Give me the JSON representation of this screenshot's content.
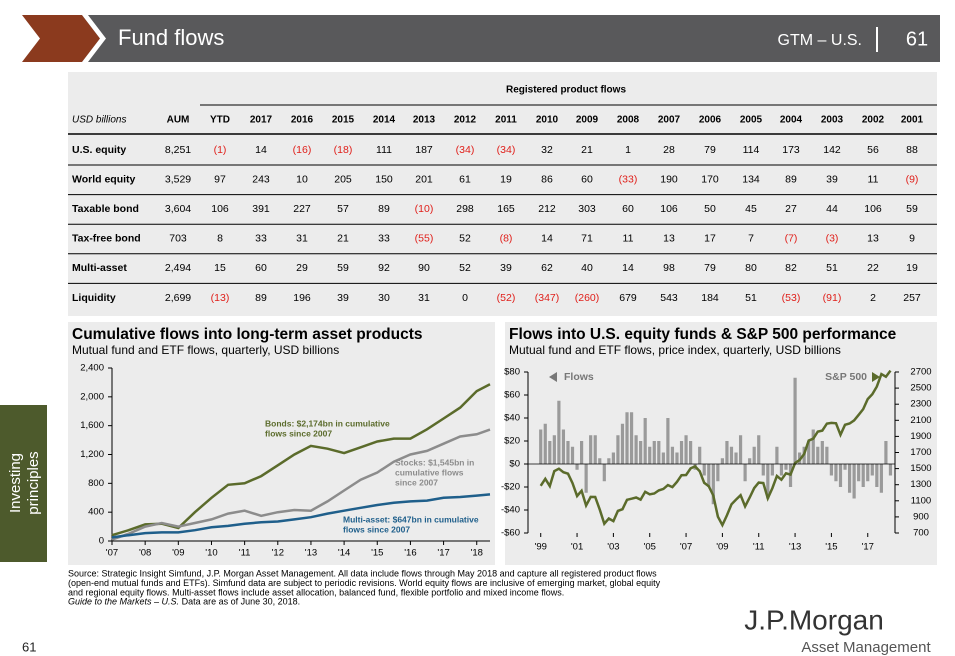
{
  "header": {
    "title": "Fund flows",
    "section": "GTM – U.S.",
    "page": "61"
  },
  "side_tab": [
    "Investing",
    "principles"
  ],
  "table": {
    "group_header": "Registered product flows",
    "columns": [
      "USD billions",
      "AUM",
      "YTD",
      "2017",
      "2016",
      "2015",
      "2014",
      "2013",
      "2012",
      "2011",
      "2010",
      "2009",
      "2008",
      "2007",
      "2006",
      "2005",
      "2004",
      "2003",
      "2002",
      "2001"
    ],
    "rows": [
      [
        "U.S. equity",
        "8,251",
        "(1)",
        "14",
        "(16)",
        "(18)",
        "111",
        "187",
        "(34)",
        "(34)",
        "32",
        "21",
        "1",
        "28",
        "79",
        "114",
        "173",
        "142",
        "56",
        "88"
      ],
      [
        "World equity",
        "3,529",
        "97",
        "243",
        "10",
        "205",
        "150",
        "201",
        "61",
        "19",
        "86",
        "60",
        "(33)",
        "190",
        "170",
        "134",
        "89",
        "39",
        "11",
        "(9)"
      ],
      [
        "Taxable bond",
        "3,604",
        "106",
        "391",
        "227",
        "57",
        "89",
        "(10)",
        "298",
        "165",
        "212",
        "303",
        "60",
        "106",
        "50",
        "45",
        "27",
        "44",
        "106",
        "59"
      ],
      [
        "Tax-free bond",
        "703",
        "8",
        "33",
        "31",
        "21",
        "33",
        "(55)",
        "52",
        "(8)",
        "14",
        "71",
        "11",
        "13",
        "17",
        "7",
        "(7)",
        "(3)",
        "13",
        "9"
      ],
      [
        "Multi-asset",
        "2,494",
        "15",
        "60",
        "29",
        "59",
        "92",
        "90",
        "52",
        "39",
        "62",
        "40",
        "14",
        "98",
        "79",
        "80",
        "82",
        "51",
        "22",
        "19"
      ],
      [
        "Liquidity",
        "2,699",
        "(13)",
        "89",
        "196",
        "39",
        "30",
        "31",
        "0",
        "(52)",
        "(347)",
        "(260)",
        "679",
        "543",
        "184",
        "51",
        "(53)",
        "(91)",
        "2",
        "257"
      ]
    ]
  },
  "chart_data": [
    {
      "type": "line",
      "title": "Cumulative flows into long-term asset products",
      "subtitle": "Mutual fund and ETF flows, quarterly, USD billions",
      "x": [
        2007,
        2007.5,
        2008,
        2008.5,
        2009,
        2009.5,
        2010,
        2010.5,
        2011,
        2011.5,
        2012,
        2012.5,
        2013,
        2013.5,
        2014,
        2014.5,
        2015,
        2015.5,
        2016,
        2016.5,
        2017,
        2017.5,
        2018,
        2018.4
      ],
      "xlim": [
        2007,
        2018.4
      ],
      "xticks": [
        {
          "value": 2007,
          "label": "'07"
        },
        {
          "value": 2008,
          "label": "'08"
        },
        {
          "value": 2009,
          "label": "'09"
        },
        {
          "value": 2010,
          "label": "'10"
        },
        {
          "value": 2011,
          "label": "'11"
        },
        {
          "value": 2012,
          "label": "'12"
        },
        {
          "value": 2013,
          "label": "'13"
        },
        {
          "value": 2014,
          "label": "'14"
        },
        {
          "value": 2015,
          "label": "'15"
        },
        {
          "value": 2016,
          "label": "'16"
        },
        {
          "value": 2017,
          "label": "'17"
        },
        {
          "value": 2018,
          "label": "'18"
        }
      ],
      "ylim": [
        0,
        2400
      ],
      "yticks": [
        0,
        400,
        800,
        {
          "value": 1200,
          "label": "1,200"
        },
        {
          "value": 1600,
          "label": "1,600"
        },
        {
          "value": 2000,
          "label": "2,000"
        },
        {
          "value": 2400,
          "label": "2,400"
        }
      ],
      "series": [
        {
          "name": "Bonds",
          "color": "#5b6b2b",
          "values": [
            80,
            150,
            230,
            240,
            180,
            400,
            600,
            780,
            800,
            900,
            1050,
            1200,
            1320,
            1280,
            1220,
            1300,
            1380,
            1420,
            1420,
            1550,
            1700,
            1850,
            2080,
            2174
          ]
        },
        {
          "name": "Stocks",
          "color": "#8c8c8c",
          "values": [
            20,
            100,
            200,
            250,
            200,
            250,
            300,
            380,
            420,
            350,
            400,
            430,
            420,
            550,
            700,
            850,
            950,
            1100,
            1200,
            1250,
            1350,
            1450,
            1480,
            1545
          ]
        },
        {
          "name": "Multi-asset",
          "color": "#1f5f8b",
          "values": [
            50,
            80,
            110,
            120,
            120,
            150,
            190,
            210,
            240,
            260,
            270,
            300,
            330,
            380,
            420,
            460,
            500,
            530,
            550,
            560,
            600,
            610,
            630,
            647
          ]
        }
      ],
      "annotations": [
        {
          "series": 0,
          "lines": [
            "Bonds: $2,174bn in cumulative",
            "flows since 2007"
          ]
        },
        {
          "series": 1,
          "lines": [
            "Stocks: $1,545bn in",
            "cumulative flows",
            "since 2007"
          ]
        },
        {
          "series": 2,
          "lines": [
            "Multi-asset: $647bn in cumulative",
            "flows since 2007"
          ]
        }
      ]
    },
    {
      "type": "bar_line",
      "title": "Flows into U.S. equity funds & S&P 500 performance",
      "subtitle": "Mutual fund and ETF flows, price index, quarterly, USD billions",
      "x": [
        1999,
        1999.25,
        1999.5,
        1999.75,
        2000,
        2000.25,
        2000.5,
        2000.75,
        2001,
        2001.25,
        2001.5,
        2001.75,
        2002,
        2002.25,
        2002.5,
        2002.75,
        2003,
        2003.25,
        2003.5,
        2003.75,
        2004,
        2004.25,
        2004.5,
        2004.75,
        2005,
        2005.25,
        2005.5,
        2005.75,
        2006,
        2006.25,
        2006.5,
        2006.75,
        2007,
        2007.25,
        2007.5,
        2007.75,
        2008,
        2008.25,
        2008.5,
        2008.75,
        2009,
        2009.25,
        2009.5,
        2009.75,
        2010,
        2010.25,
        2010.5,
        2010.75,
        2011,
        2011.25,
        2011.5,
        2011.75,
        2012,
        2012.25,
        2012.5,
        2012.75,
        2013,
        2013.25,
        2013.5,
        2013.75,
        2014,
        2014.25,
        2014.5,
        2014.75,
        2015,
        2015.25,
        2015.5,
        2015.75,
        2016,
        2016.25,
        2016.5,
        2016.75,
        2017,
        2017.25,
        2017.5,
        2017.75,
        2018,
        2018.25
      ],
      "xlim": [
        1998.3,
        2018.5
      ],
      "xticks": [
        {
          "value": 1999,
          "label": "'99"
        },
        {
          "value": 2001,
          "label": "'01"
        },
        {
          "value": 2003,
          "label": "'03"
        },
        {
          "value": 2005,
          "label": "'05"
        },
        {
          "value": 2007,
          "label": "'07"
        },
        {
          "value": 2009,
          "label": "'09"
        },
        {
          "value": 2011,
          "label": "'11"
        },
        {
          "value": 2013,
          "label": "'13"
        },
        {
          "value": 2015,
          "label": "'15"
        },
        {
          "value": 2017,
          "label": "'17"
        }
      ],
      "ylim": [
        -60,
        80
      ],
      "yticks": [
        {
          "value": -60,
          "label": "-$60"
        },
        {
          "value": -40,
          "label": "-$40"
        },
        {
          "value": -20,
          "label": "-$20"
        },
        {
          "value": 0,
          "label": "$0"
        },
        {
          "value": 20,
          "label": "$20"
        },
        {
          "value": 40,
          "label": "$40"
        },
        {
          "value": 60,
          "label": "$60"
        },
        {
          "value": 80,
          "label": "$80"
        }
      ],
      "y2lim": [
        700,
        2700
      ],
      "y2ticks": [
        700,
        900,
        1100,
        1300,
        1500,
        1700,
        1900,
        2100,
        2300,
        2500,
        2700
      ],
      "series": [
        {
          "name": "Flows",
          "type": "bar",
          "color": "#9a9a9a",
          "values": [
            30,
            35,
            20,
            25,
            55,
            30,
            20,
            15,
            -5,
            20,
            -25,
            25,
            25,
            5,
            -15,
            5,
            10,
            25,
            35,
            45,
            45,
            25,
            20,
            40,
            15,
            20,
            20,
            10,
            40,
            15,
            10,
            20,
            25,
            20,
            -5,
            15,
            -10,
            -20,
            -35,
            -15,
            5,
            20,
            15,
            10,
            25,
            -15,
            5,
            15,
            25,
            -10,
            -30,
            -10,
            15,
            -10,
            -5,
            -20,
            75,
            10,
            15,
            20,
            30,
            15,
            20,
            15,
            -10,
            -15,
            -20,
            -5,
            -25,
            -30,
            -15,
            -20,
            -15,
            -10,
            -20,
            -25,
            20,
            -10
          ]
        },
        {
          "name": "S&P 500",
          "type": "line",
          "axis": "y2",
          "color": "#5b6b2b",
          "values": [
            1286,
            1373,
            1283,
            1469,
            1499,
            1455,
            1437,
            1320,
            1160,
            1224,
            1041,
            1148,
            1147,
            990,
            815,
            880,
            848,
            975,
            996,
            1112,
            1126,
            1141,
            1115,
            1212,
            1181,
            1191,
            1229,
            1248,
            1295,
            1270,
            1336,
            1418,
            1421,
            1503,
            1527,
            1468,
            1323,
            1280,
            1166,
            903,
            798,
            919,
            1057,
            1115,
            1169,
            1031,
            1141,
            1258,
            1326,
            1321,
            1131,
            1258,
            1408,
            1362,
            1441,
            1426,
            1569,
            1606,
            1682,
            1848,
            1872,
            1960,
            1972,
            2059,
            2068,
            2063,
            1920,
            2044,
            2060,
            2099,
            2168,
            2239,
            2363,
            2423,
            2519,
            2674,
            2641,
            2718
          ]
        }
      ]
    }
  ],
  "footer": {
    "source": [
      "Source: Strategic Insight Simfund, J.P. Morgan Asset Management. All data include flows through May 2018 and capture all registered product flows",
      "(open-end mutual funds and ETFs). Simfund data are subject to periodic revisions. World equity flows are inclusive of emerging market, global equity",
      "and regional equity flows. Multi-asset flows include asset allocation, balanced fund, flexible portfolio and mixed income flows."
    ],
    "note_italic": "Guide to the Markets – U.S.",
    "note": " Data are as of June 30, 2018."
  },
  "logo": {
    "name": "J.P.Morgan",
    "sub": "Asset Management"
  },
  "page_number": "61"
}
